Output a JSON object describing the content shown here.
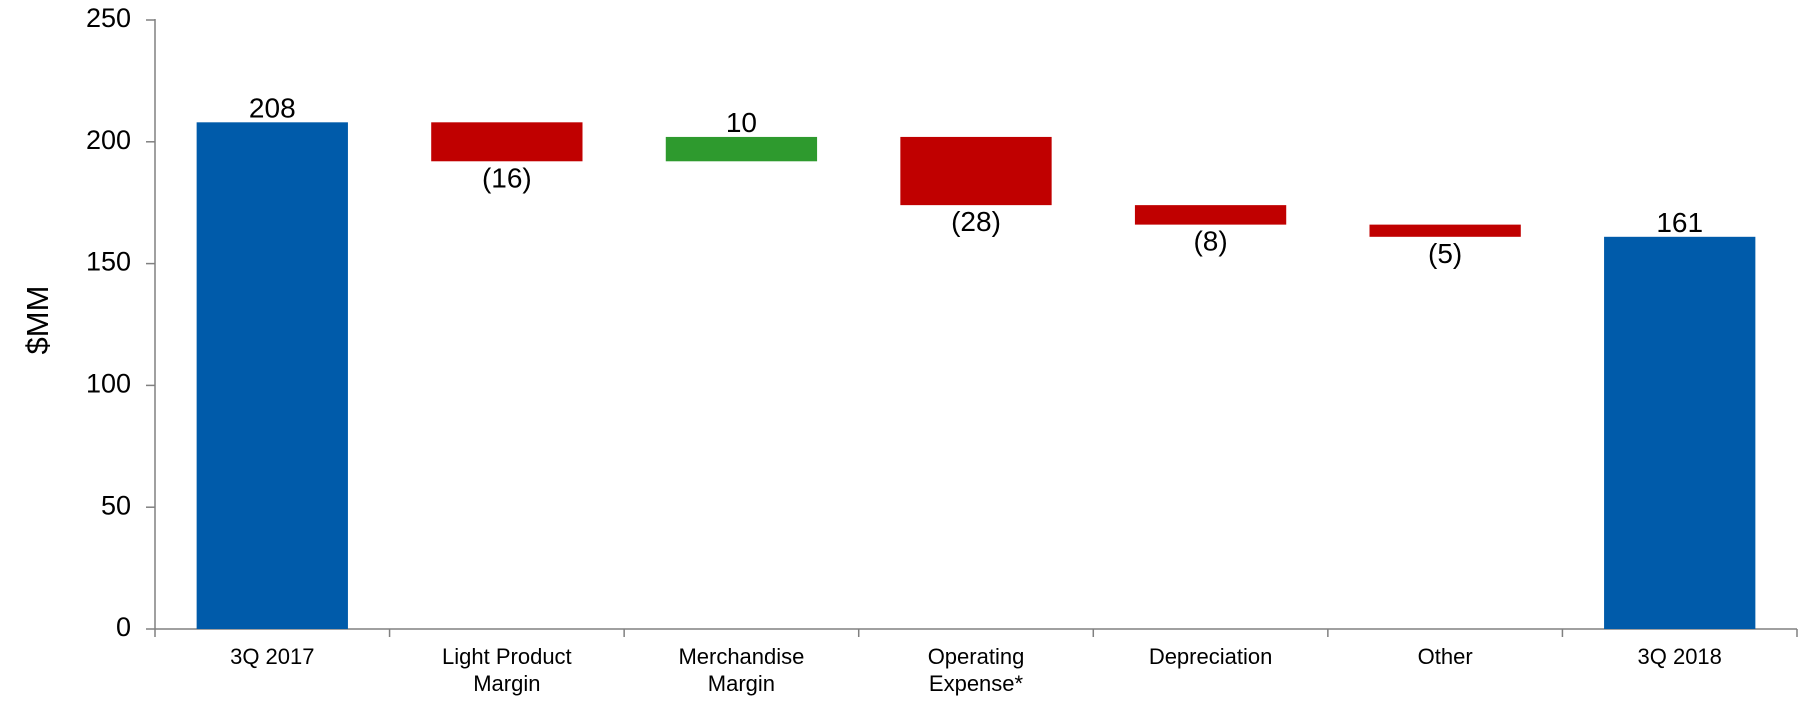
{
  "chart_data": {
    "type": "waterfall",
    "categories": [
      [
        "3Q 2017"
      ],
      [
        "Light Product",
        "Margin"
      ],
      [
        "Merchandise",
        "Margin"
      ],
      [
        "Operating",
        "Expense*"
      ],
      [
        "Depreciation"
      ],
      [
        "Other"
      ],
      [
        "3Q 2018"
      ]
    ],
    "steps": [
      {
        "kind": "total",
        "start": 0,
        "end": 208,
        "label": "208"
      },
      {
        "kind": "decrease",
        "start": 208,
        "end": 192,
        "label": "(16)"
      },
      {
        "kind": "increase",
        "start": 192,
        "end": 202,
        "label": "10"
      },
      {
        "kind": "decrease",
        "start": 202,
        "end": 174,
        "label": "(28)"
      },
      {
        "kind": "decrease",
        "start": 174,
        "end": 166,
        "label": "(8)"
      },
      {
        "kind": "decrease",
        "start": 166,
        "end": 161,
        "label": "(5)"
      },
      {
        "kind": "total",
        "start": 0,
        "end": 161,
        "label": "161"
      }
    ],
    "ylabel": "$MM",
    "xlabel": "",
    "title": "",
    "ylim": [
      0,
      250
    ],
    "yticks": [
      0,
      50,
      100,
      150,
      200,
      250
    ],
    "grid": false,
    "colors": {
      "total": "#005BAA",
      "decrease": "#C00000",
      "increase": "#2E9A2E",
      "axis": "#808080"
    }
  }
}
